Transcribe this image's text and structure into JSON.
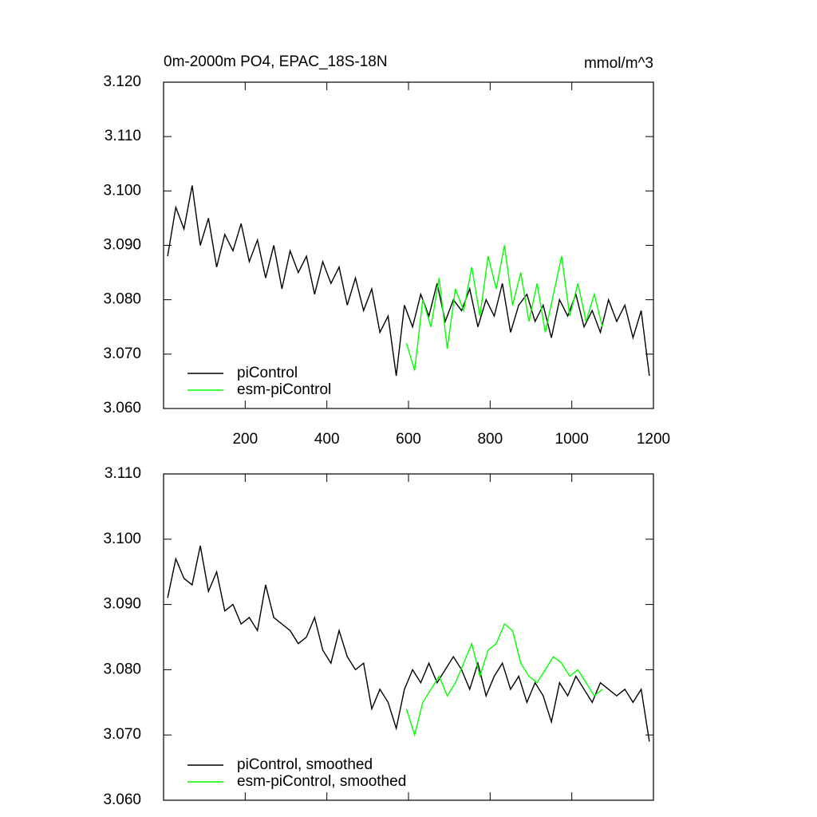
{
  "chart_data": [
    {
      "type": "line",
      "title": "0m-2000m PO4, EPAC_18S-18N",
      "units": "mmol/m^3",
      "xlim": [
        0,
        1200
      ],
      "xticks": [
        200,
        400,
        600,
        800,
        1000,
        1200
      ],
      "ylim": [
        3.06,
        3.12
      ],
      "yticks": [
        {
          "value": 3.06,
          "label": "3.060"
        },
        {
          "value": 3.07,
          "label": "3.070"
        },
        {
          "value": 3.08,
          "label": "3.080"
        },
        {
          "value": 3.09,
          "label": "3.090"
        },
        {
          "value": 3.1,
          "label": "3.100"
        },
        {
          "value": 3.11,
          "label": "3.110"
        },
        {
          "value": 3.12,
          "label": "3.120"
        }
      ],
      "legend": "lower left",
      "series": [
        {
          "name": "piControl",
          "color": "#000000",
          "x": [
            10,
            30,
            50,
            70,
            90,
            110,
            130,
            150,
            170,
            190,
            210,
            230,
            250,
            270,
            290,
            310,
            330,
            350,
            370,
            390,
            410,
            430,
            450,
            470,
            490,
            510,
            530,
            550,
            570,
            590,
            610,
            630,
            650,
            670,
            690,
            710,
            730,
            750,
            770,
            790,
            810,
            830,
            850,
            870,
            890,
            910,
            930,
            950,
            970,
            990,
            1010,
            1030,
            1050,
            1070,
            1090,
            1110,
            1130,
            1150,
            1170,
            1190
          ],
          "values": [
            3.088,
            3.097,
            3.093,
            3.101,
            3.09,
            3.095,
            3.086,
            3.092,
            3.089,
            3.094,
            3.087,
            3.091,
            3.084,
            3.09,
            3.082,
            3.089,
            3.085,
            3.088,
            3.081,
            3.087,
            3.083,
            3.086,
            3.079,
            3.084,
            3.078,
            3.082,
            3.074,
            3.077,
            3.066,
            3.079,
            3.075,
            3.081,
            3.077,
            3.083,
            3.076,
            3.08,
            3.078,
            3.082,
            3.075,
            3.08,
            3.077,
            3.083,
            3.074,
            3.079,
            3.081,
            3.076,
            3.079,
            3.073,
            3.08,
            3.077,
            3.081,
            3.075,
            3.078,
            3.074,
            3.08,
            3.076,
            3.079,
            3.073,
            3.078,
            3.066
          ]
        },
        {
          "name": "esm-piControl",
          "color": "#00ff00",
          "x": [
            595,
            615,
            635,
            655,
            675,
            695,
            715,
            735,
            755,
            775,
            795,
            815,
            835,
            855,
            875,
            895,
            915,
            935,
            955,
            975,
            995,
            1015,
            1035,
            1055,
            1075
          ],
          "values": [
            3.072,
            3.067,
            3.08,
            3.075,
            3.084,
            3.071,
            3.082,
            3.078,
            3.086,
            3.077,
            3.088,
            3.082,
            3.09,
            3.079,
            3.085,
            3.076,
            3.083,
            3.074,
            3.081,
            3.088,
            3.077,
            3.083,
            3.076,
            3.081,
            3.075
          ]
        }
      ]
    },
    {
      "type": "line",
      "xlim": [
        0,
        1200
      ],
      "ylim": [
        3.06,
        3.11
      ],
      "yticks": [
        {
          "value": 3.06,
          "label": "3.060"
        },
        {
          "value": 3.07,
          "label": "3.070"
        },
        {
          "value": 3.08,
          "label": "3.080"
        },
        {
          "value": 3.09,
          "label": "3.090"
        },
        {
          "value": 3.1,
          "label": "3.100"
        },
        {
          "value": 3.11,
          "label": "3.110"
        }
      ],
      "legend": "lower left",
      "series": [
        {
          "name": "piControl, smoothed",
          "color": "#000000",
          "x": [
            10,
            30,
            50,
            70,
            90,
            110,
            130,
            150,
            170,
            190,
            210,
            230,
            250,
            270,
            290,
            310,
            330,
            350,
            370,
            390,
            410,
            430,
            450,
            470,
            490,
            510,
            530,
            550,
            570,
            590,
            610,
            630,
            650,
            670,
            690,
            710,
            730,
            750,
            770,
            790,
            810,
            830,
            850,
            870,
            890,
            910,
            930,
            950,
            970,
            990,
            1010,
            1030,
            1050,
            1070,
            1090,
            1110,
            1130,
            1150,
            1170,
            1190
          ],
          "values": [
            3.091,
            3.097,
            3.094,
            3.093,
            3.099,
            3.092,
            3.095,
            3.089,
            3.09,
            3.087,
            3.088,
            3.086,
            3.093,
            3.088,
            3.087,
            3.086,
            3.084,
            3.085,
            3.088,
            3.083,
            3.081,
            3.086,
            3.082,
            3.08,
            3.081,
            3.074,
            3.077,
            3.075,
            3.071,
            3.077,
            3.08,
            3.078,
            3.081,
            3.078,
            3.08,
            3.082,
            3.08,
            3.077,
            3.081,
            3.076,
            3.079,
            3.081,
            3.077,
            3.079,
            3.075,
            3.078,
            3.076,
            3.072,
            3.078,
            3.076,
            3.079,
            3.077,
            3.075,
            3.078,
            3.077,
            3.076,
            3.077,
            3.075,
            3.077,
            3.069
          ]
        },
        {
          "name": "esm-piControl, smoothed",
          "color": "#00ff00",
          "x": [
            595,
            615,
            635,
            655,
            675,
            695,
            715,
            735,
            755,
            775,
            795,
            815,
            835,
            855,
            875,
            895,
            915,
            935,
            955,
            975,
            995,
            1015,
            1035,
            1055,
            1075
          ],
          "values": [
            3.074,
            3.07,
            3.075,
            3.077,
            3.079,
            3.076,
            3.078,
            3.081,
            3.084,
            3.079,
            3.083,
            3.084,
            3.087,
            3.086,
            3.081,
            3.079,
            3.078,
            3.08,
            3.082,
            3.081,
            3.079,
            3.08,
            3.078,
            3.076,
            3.077
          ]
        }
      ]
    }
  ]
}
